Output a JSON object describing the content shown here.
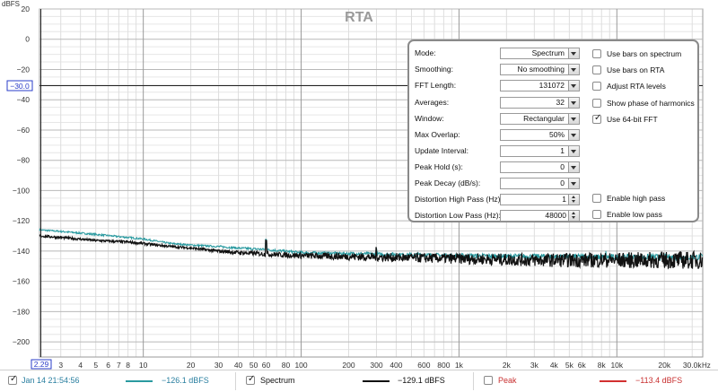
{
  "title": "RTA",
  "y_unit": "dBFS",
  "x_unit": "Hz",
  "y_ticks": [
    "20",
    "0",
    "−20",
    "−40",
    "−60",
    "−80",
    "−100",
    "−120",
    "−140",
    "−160",
    "−180",
    "−200"
  ],
  "y_cursor_label": "−30.0",
  "x_cursor_label": "2.29",
  "x_ticks": [
    {
      "label": "3",
      "f": 3
    },
    {
      "label": "4",
      "f": 4
    },
    {
      "label": "5",
      "f": 5
    },
    {
      "label": "6",
      "f": 6
    },
    {
      "label": "7",
      "f": 7
    },
    {
      "label": "8",
      "f": 8
    },
    {
      "label": "10",
      "f": 10
    },
    {
      "label": "20",
      "f": 20
    },
    {
      "label": "30",
      "f": 30
    },
    {
      "label": "40",
      "f": 40
    },
    {
      "label": "50",
      "f": 50
    },
    {
      "label": "60",
      "f": 60
    },
    {
      "label": "80",
      "f": 80
    },
    {
      "label": "100",
      "f": 100
    },
    {
      "label": "200",
      "f": 200
    },
    {
      "label": "300",
      "f": 300
    },
    {
      "label": "400",
      "f": 400
    },
    {
      "label": "600",
      "f": 600
    },
    {
      "label": "800",
      "f": 800
    },
    {
      "label": "1k",
      "f": 1000
    },
    {
      "label": "2k",
      "f": 2000
    },
    {
      "label": "3k",
      "f": 3000
    },
    {
      "label": "4k",
      "f": 4000
    },
    {
      "label": "5k",
      "f": 5000
    },
    {
      "label": "6k",
      "f": 6000
    },
    {
      "label": "8k",
      "f": 8000
    },
    {
      "label": "10k",
      "f": 10000
    },
    {
      "label": "20k",
      "f": 20000
    },
    {
      "label": "30.0k",
      "f": 30000
    }
  ],
  "panel": {
    "rows": [
      {
        "label": "Mode:",
        "value": "Spectrum",
        "control": "dropdown"
      },
      {
        "label": "Smoothing:",
        "value": "No  smoothing",
        "control": "dropdown"
      },
      {
        "label": "FFT Length:",
        "value": "131072",
        "control": "dropdown"
      },
      {
        "label": "Averages:",
        "value": "32",
        "control": "dropdown"
      },
      {
        "label": "Window:",
        "value": "Rectangular",
        "control": "dropdown"
      },
      {
        "label": "Max Overlap:",
        "value": "50%",
        "control": "dropdown"
      },
      {
        "label": "Update Interval:",
        "value": "1",
        "control": "dropdown"
      },
      {
        "label": "Peak Hold (s):",
        "value": "0",
        "control": "dropdown"
      },
      {
        "label": "Peak Decay (dB/s):",
        "value": "0",
        "control": "dropdown"
      },
      {
        "label": "Distortion High Pass (Hz):",
        "value": "1",
        "control": "spinner"
      },
      {
        "label": "Distortion Low Pass (Hz):",
        "value": "48000",
        "control": "spinner"
      }
    ],
    "checkboxes": [
      {
        "label": "Use bars on spectrum",
        "checked": false
      },
      {
        "label": "Use bars on RTA",
        "checked": false
      },
      {
        "label": "Adjust RTA levels",
        "checked": false
      },
      {
        "label": "Show phase of harmonics",
        "checked": false
      },
      {
        "label": "Use 64-bit FFT",
        "checked": true
      },
      {
        "label": "Enable high pass",
        "checked": false
      },
      {
        "label": "Enable low pass",
        "checked": false
      }
    ]
  },
  "legend": {
    "measurement": {
      "label": "Jan 14 21:54:56",
      "checked": true,
      "color": "#2a9aa0",
      "value": "−126.1 dBFS"
    },
    "spectrum": {
      "label": "Spectrum",
      "checked": true,
      "color": "#111111",
      "value": "−129.1 dBFS"
    },
    "peak": {
      "label": "Peak",
      "checked": false,
      "color": "#d23030",
      "value": "−113.4 dBFS"
    }
  },
  "colors": {
    "teal": "#2a9aa0",
    "black": "#111111",
    "peak": "#d23030",
    "cursor": "#2a3cc8"
  },
  "chart_data": {
    "type": "line",
    "title": "RTA",
    "xlabel": "Hz",
    "ylabel": "dBFS",
    "x_scale": "log",
    "xlim": [
      2.2,
      35000
    ],
    "ylim": [
      -210,
      20
    ],
    "grid": true,
    "series": [
      {
        "name": "Jan 14 21:54:56",
        "color": "#2a9aa0",
        "points": [
          [
            2.2,
            -126
          ],
          [
            3,
            -127
          ],
          [
            5,
            -129
          ],
          [
            8,
            -131
          ],
          [
            10,
            -132
          ],
          [
            15,
            -135
          ],
          [
            20,
            -136
          ],
          [
            30,
            -137
          ],
          [
            40,
            -138
          ],
          [
            60,
            -139
          ],
          [
            100,
            -141
          ],
          [
            300,
            -142
          ],
          [
            1000,
            -143
          ],
          [
            3000,
            -143.5
          ],
          [
            10000,
            -144
          ],
          [
            35000,
            -144
          ]
        ]
      },
      {
        "name": "Spectrum",
        "color": "#111111",
        "points": [
          [
            2.2,
            -130
          ],
          [
            3,
            -131
          ],
          [
            5,
            -133
          ],
          [
            8,
            -134
          ],
          [
            10,
            -135
          ],
          [
            15,
            -137
          ],
          [
            20,
            -138
          ],
          [
            30,
            -140
          ],
          [
            40,
            -141
          ],
          [
            60,
            -142
          ],
          [
            100,
            -143
          ],
          [
            300,
            -144
          ],
          [
            1000,
            -145
          ],
          [
            3000,
            -146
          ],
          [
            10000,
            -146
          ],
          [
            35000,
            -146
          ]
        ]
      }
    ]
  }
}
